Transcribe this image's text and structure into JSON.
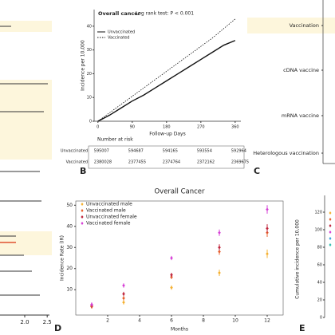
{
  "chart_data": [
    {
      "type": "forest",
      "xticks": [
        {
          "value": 2,
          "label": "2.0"
        },
        {
          "value": 2.5,
          "label": "2.5"
        }
      ],
      "xlim": [
        1.45,
        2.55
      ]
    },
    {
      "type": "line",
      "letter": "B",
      "title": "Overall cancer",
      "subtitle": "Log rank test: P < 0.001",
      "xlabel": "Follow-up Days",
      "ylabel": "Incidence per 10,000",
      "x": [
        0,
        30,
        60,
        90,
        120,
        150,
        180,
        210,
        240,
        270,
        300,
        330,
        360
      ],
      "series": [
        {
          "name": "Unvaccinated",
          "color": "#111111",
          "dash": false,
          "values": [
            0,
            2.5,
            5.5,
            8.5,
            11,
            14,
            17,
            20,
            23,
            26,
            29,
            32,
            34
          ]
        },
        {
          "name": "Vaccinated",
          "color": "#111111",
          "dash": true,
          "values": [
            0,
            3.5,
            7,
            10.5,
            14,
            17.5,
            21,
            24.5,
            28,
            31.5,
            35,
            39,
            43
          ]
        }
      ],
      "xlim": [
        -10,
        375
      ],
      "xticks": [
        0,
        90,
        180,
        270,
        360
      ],
      "ylim": [
        0,
        47
      ],
      "yticks": [
        0,
        10,
        20,
        30,
        40
      ],
      "risk_title": "Number at risk",
      "risk_rows": [
        {
          "name": "Unvaccinated",
          "values": [
            595007,
            594687,
            594165,
            593554,
            592964
          ]
        },
        {
          "name": "Vaccinated",
          "values": [
            2380028,
            2377455,
            2374764,
            2372162,
            2369675
          ]
        }
      ]
    },
    {
      "type": "forest-labels",
      "letter": "C",
      "categories": [
        "Vaccination",
        "cDNA vaccine",
        "mRNA vaccine",
        "Heterologous vaccination"
      ]
    },
    {
      "type": "scatter",
      "letter": "D",
      "title": "Overall Cancer",
      "xlabel": "Months",
      "ylabel": "Incidence Rate (IR)",
      "x": [
        1,
        3,
        6,
        9,
        12
      ],
      "xlim": [
        0,
        13
      ],
      "xticks": [
        2,
        4,
        6,
        8,
        10,
        12
      ],
      "ylim": [
        -2,
        52
      ],
      "yticks": [
        10,
        20,
        30,
        40,
        50
      ],
      "series": [
        {
          "name": "Unvaccinated male",
          "color": "#f5b030",
          "values": [
            2,
            4,
            11,
            18,
            27
          ],
          "errors": [
            1,
            1,
            1,
            1.5,
            2
          ]
        },
        {
          "name": "Vaccinated male",
          "color": "#e8602c",
          "values": [
            2,
            6,
            16,
            28,
            37
          ],
          "errors": [
            1,
            1,
            1,
            1.5,
            2
          ]
        },
        {
          "name": "Unvaccinated female",
          "color": "#c0243c",
          "values": [
            2.5,
            8,
            17,
            30,
            39
          ],
          "errors": [
            1,
            1,
            1,
            1.5,
            2
          ]
        },
        {
          "name": "Vaccinated female",
          "color": "#d63fd6",
          "values": [
            3,
            12,
            25,
            37,
            48
          ],
          "errors": [
            1,
            1,
            1,
            1.5,
            2
          ]
        }
      ]
    },
    {
      "type": "partial-axis",
      "letter": "E",
      "ylabel": "Cumulative incidence per 10,000",
      "ylim": [
        0,
        130
      ],
      "yticks": [
        0,
        20,
        40,
        60,
        80,
        100,
        120
      ]
    }
  ]
}
